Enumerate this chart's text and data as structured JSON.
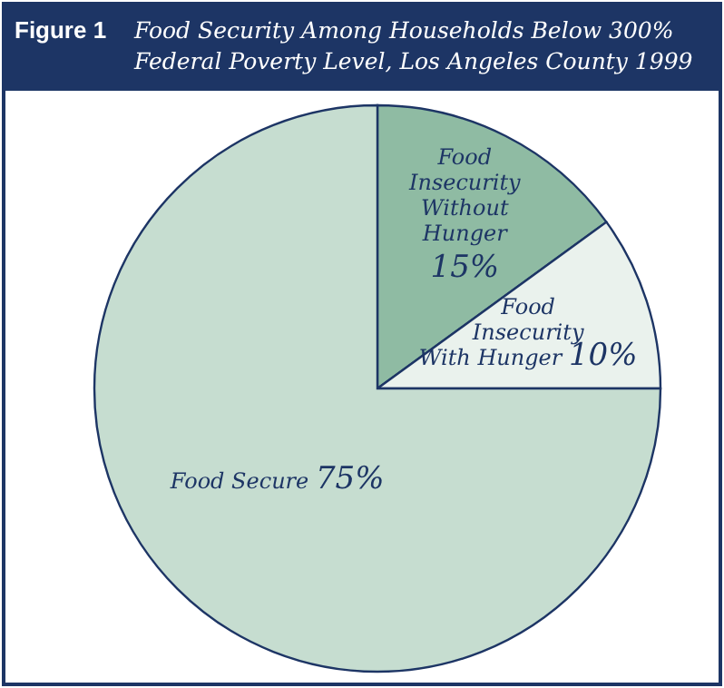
{
  "chart_data": {
    "type": "pie",
    "title": "Food Security Among Households Below 300% Federal Poverty Level, Los Angeles County 1999",
    "annotations": [
      "Figure 1"
    ],
    "categories": [
      "Food Insecurity Without Hunger",
      "Food Insecurity With Hunger",
      "Food Secure"
    ],
    "values": [
      15,
      10,
      75
    ],
    "colors": [
      "#8fbba3",
      "#eaf2ed",
      "#c6ddd0"
    ],
    "value_labels": [
      "15%",
      "10%",
      "75%"
    ]
  }
}
